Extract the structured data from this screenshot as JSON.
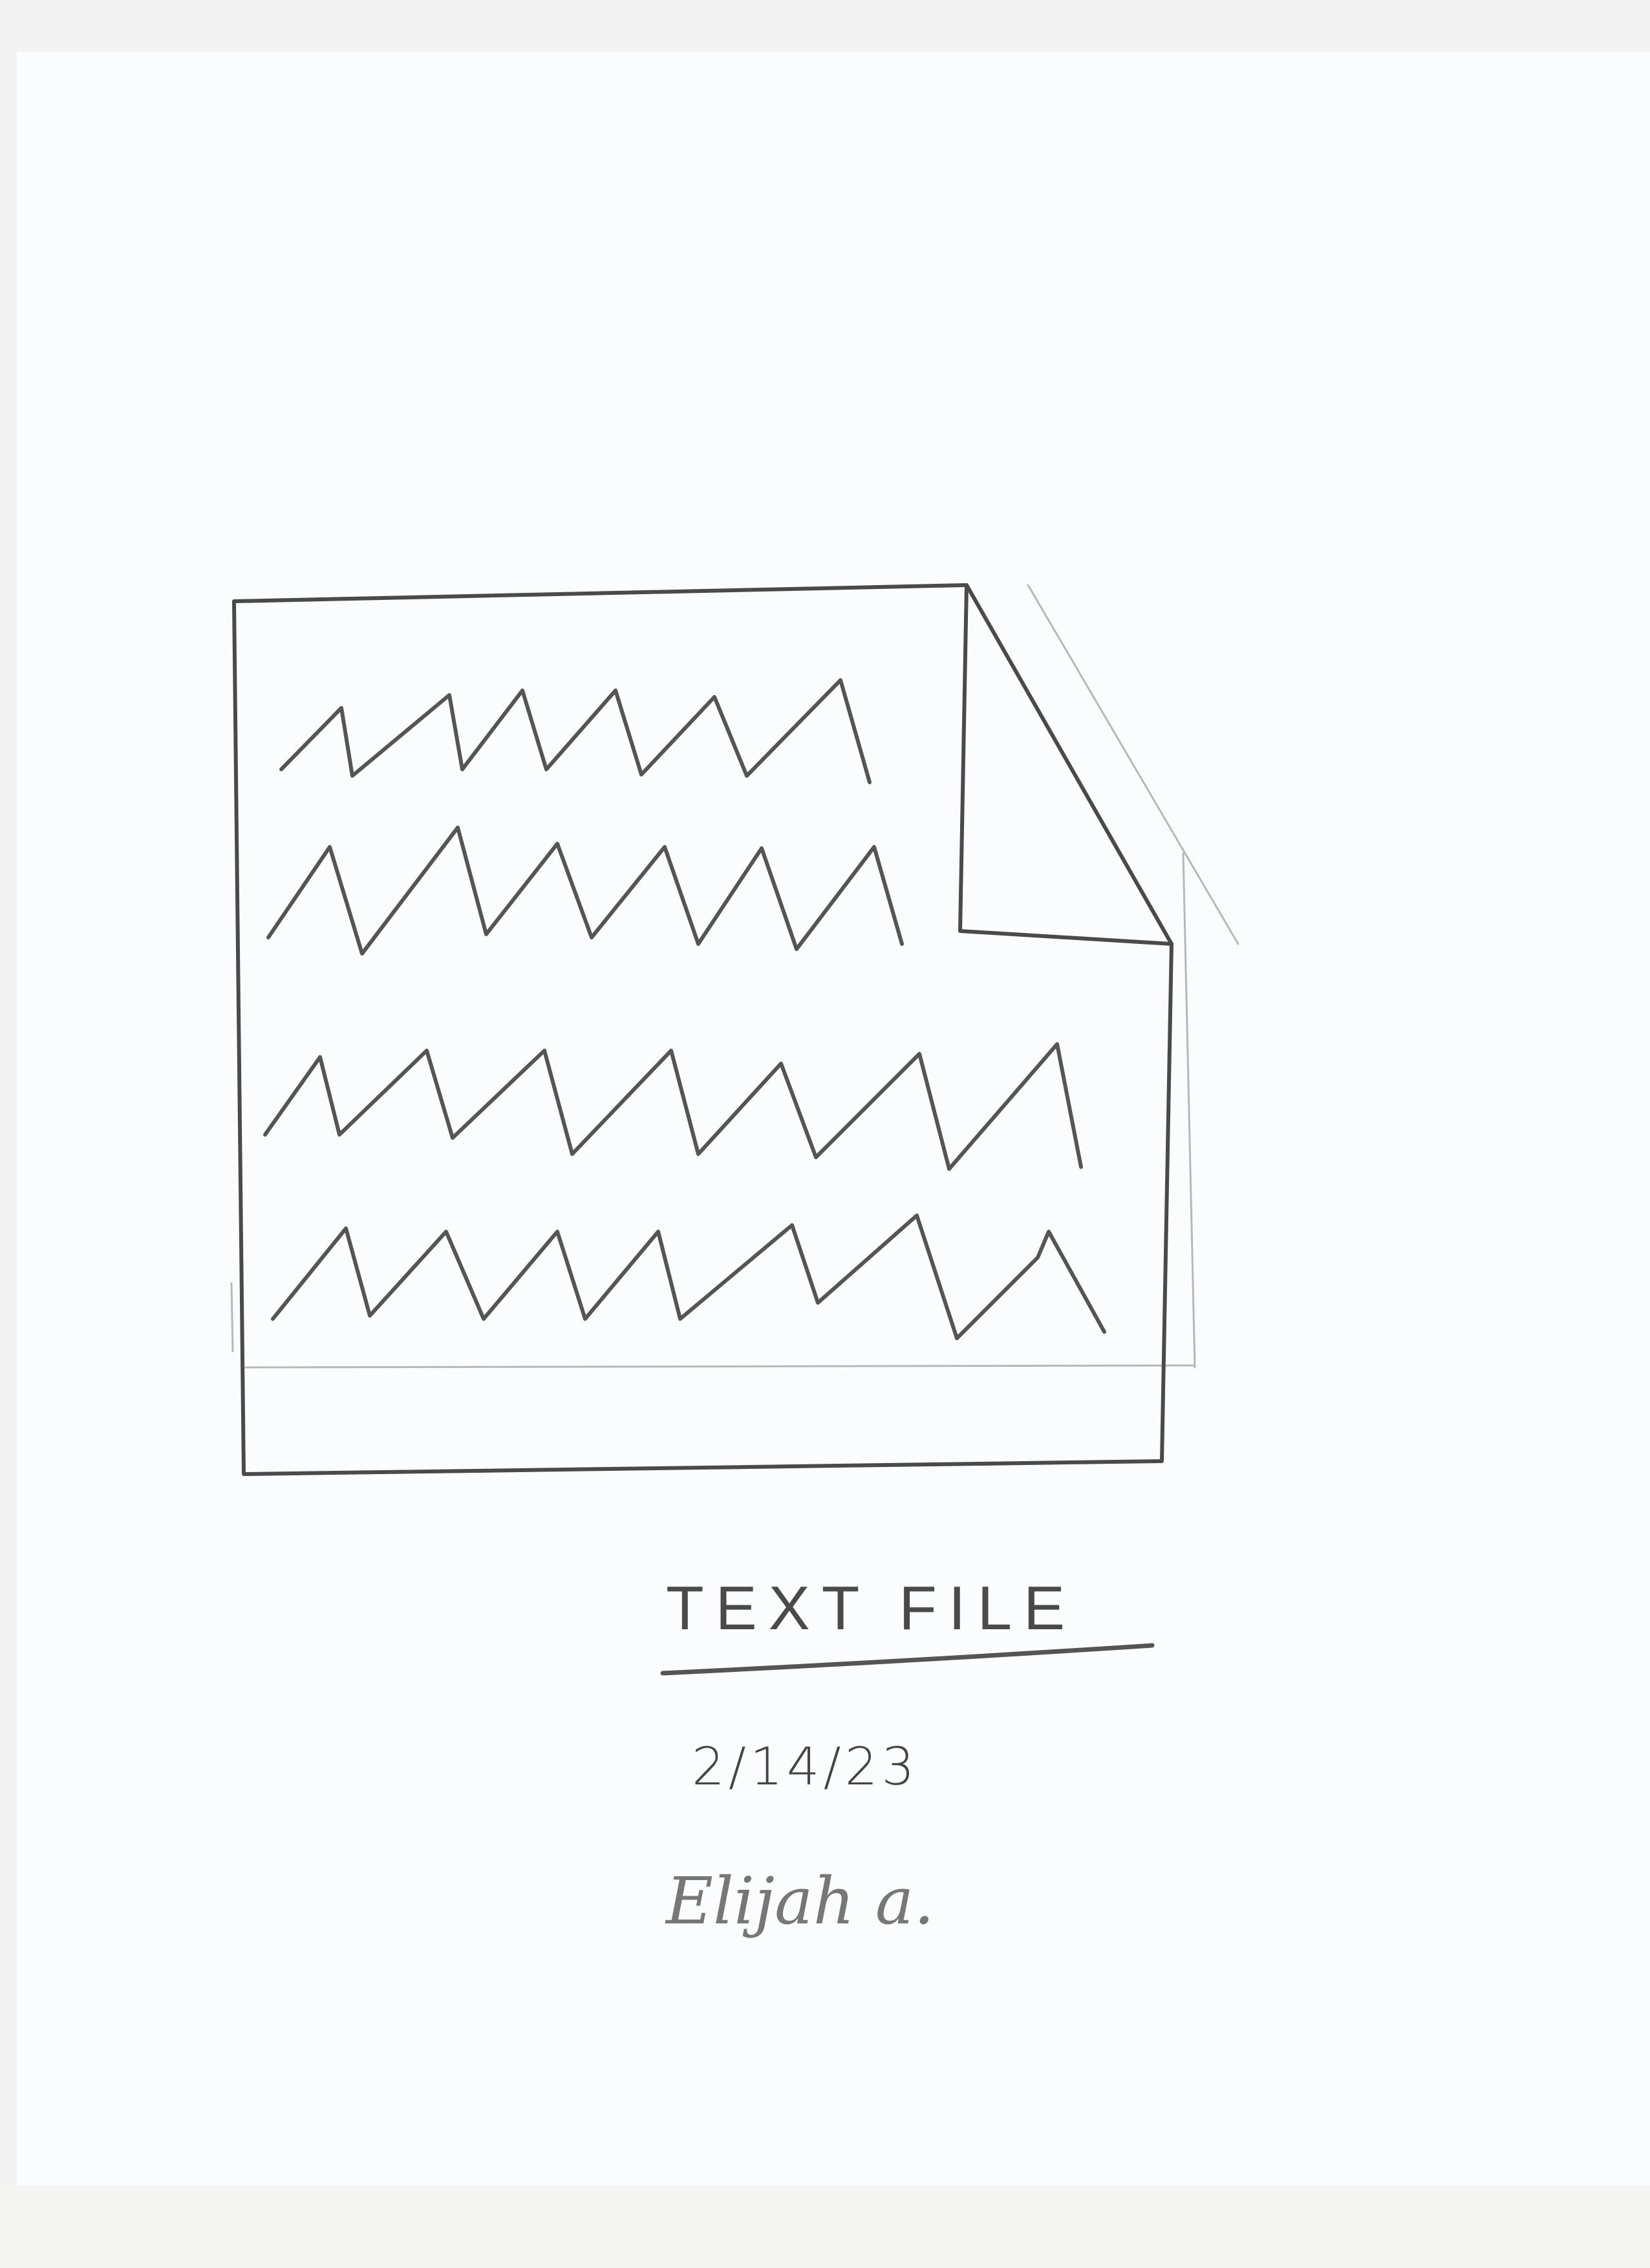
{
  "drawing": {
    "subject": "document-icon-sketch",
    "squiggle_rows": 4
  },
  "caption": {
    "title": "TEXT FILE",
    "date": "2/14/23",
    "signature": "Elijah a."
  },
  "colors": {
    "paper": "#fbfcfe",
    "pencil": "#4a4a4a",
    "faint_pencil": "#b8b8b8"
  }
}
